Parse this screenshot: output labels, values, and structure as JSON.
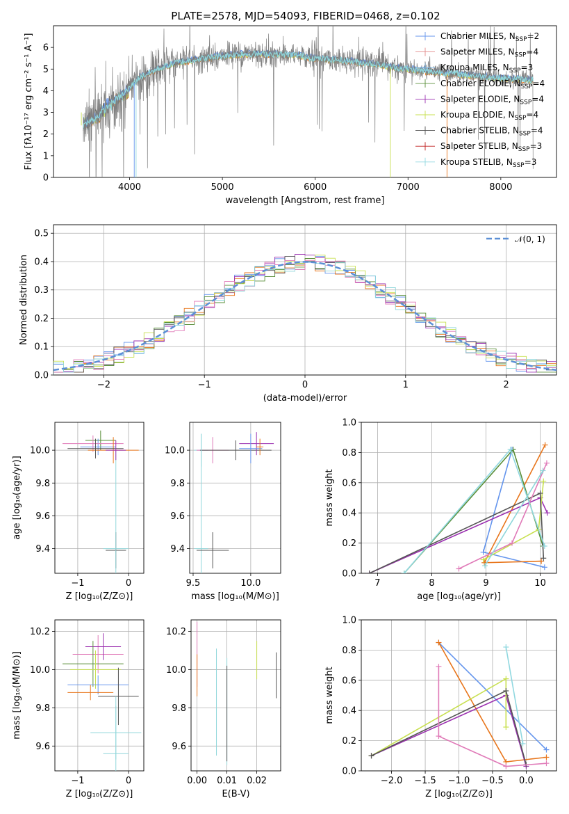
{
  "title": "PLATE=2578, MJD=54093, FIBERID=0468, z=0.102",
  "colors": {
    "grid": "#b0b0b0",
    "data": "#808080",
    "models": [
      "#6495ED",
      "#E38A8A",
      "#78B7E8",
      "#5A8F3A",
      "#9B30B0",
      "#C8E050",
      "#555555",
      "#C02020",
      "#90D8E0"
    ],
    "chi": [
      "#6495ED",
      "#E8761C",
      "#5A8F3A",
      "#9B30B0",
      "#C8E050",
      "#555555",
      "#E07AB8",
      "#8FD6DA"
    ],
    "normal": "#5B8FD6"
  },
  "chart_data": [
    {
      "id": "spectrum",
      "type": "line",
      "xlabel": "wavelength [Angstrom, rest frame]",
      "ylabel": "Flux [fλ10⁻¹⁷ erg cm⁻² s⁻¹ A⁻¹]",
      "xlim": [
        3180,
        8600
      ],
      "ylim": [
        0,
        7
      ],
      "xticks": [
        4000,
        5000,
        6000,
        7000,
        8000
      ],
      "yticks": [
        0,
        1,
        2,
        3,
        4,
        5,
        6
      ],
      "continuum": {
        "x": [
          3500,
          3650,
          3800,
          3950,
          4100,
          4300,
          4500,
          4800,
          5000,
          5200,
          5500,
          5800,
          6000,
          6300,
          6600,
          6900,
          7200,
          7500,
          7800,
          8100,
          8350
        ],
        "y": [
          2.4,
          2.8,
          3.4,
          3.9,
          4.6,
          5.0,
          5.3,
          5.5,
          5.6,
          5.7,
          5.7,
          5.65,
          5.5,
          5.4,
          5.25,
          5.05,
          4.9,
          4.8,
          4.65,
          4.55,
          4.5
        ]
      },
      "legend": [
        {
          "label": "Chabrier MILES, N",
          "sub": "SSP",
          "tail": "=2"
        },
        {
          "label": "Salpeter MILES, N",
          "sub": "SSP",
          "tail": "=4"
        },
        {
          "label": "Kroupa MILES, N",
          "sub": "SSP",
          "tail": "=3"
        },
        {
          "label": "Chabrier ELODIE, N",
          "sub": "SSP",
          "tail": "=4"
        },
        {
          "label": "Salpeter ELODIE, N",
          "sub": "SSP",
          "tail": "=4"
        },
        {
          "label": "Kroupa ELODIE, N",
          "sub": "SSP",
          "tail": "=4"
        },
        {
          "label": "Chabrier STELIB, N",
          "sub": "SSP",
          "tail": "=4"
        },
        {
          "label": "Salpeter STELIB, N",
          "sub": "SSP",
          "tail": "=3"
        },
        {
          "label": "Kroupa STELIB, N",
          "sub": "SSP",
          "tail": "=3"
        }
      ]
    },
    {
      "id": "residuals",
      "type": "histogram",
      "xlabel": "(data-model)/error",
      "ylabel": "Normed distribution",
      "xlim": [
        -2.5,
        2.5
      ],
      "ylim": [
        0,
        0.53
      ],
      "xticks": [
        -2,
        -1,
        0,
        1,
        2
      ],
      "yticks": [
        0.0,
        0.1,
        0.2,
        0.3,
        0.4,
        0.5
      ],
      "legend": "𝒩(0, 1)",
      "bin_width": 0.1,
      "curve": "normal(0,1)"
    },
    {
      "id": "age_vs_Z",
      "type": "errorbar",
      "xlabel": "Z [log₁₀(Z/Z⊙)]",
      "ylabel": "age  [log₁₀(age/yr)]",
      "xlim": [
        -1.45,
        0.3
      ],
      "ylim": [
        9.25,
        10.17
      ],
      "xticks": [
        -1,
        0
      ],
      "yticks": [
        9.4,
        9.6,
        9.8,
        10.0
      ],
      "points": [
        {
          "x": -0.55,
          "y": 10.06,
          "x_err": 0.3,
          "y_err": 0.06,
          "c": 2
        },
        {
          "x": -0.6,
          "y": 10.02,
          "x_err": 0.35,
          "y_err": 0.05,
          "c": 0
        },
        {
          "x": -0.7,
          "y": 10.04,
          "x_err": 0.6,
          "y_err": 0.05,
          "c": 6
        },
        {
          "x": -0.3,
          "y": 10.0,
          "x_err": 0.5,
          "y_err": 0.08,
          "c": 1
        },
        {
          "x": -0.65,
          "y": 10.01,
          "x_err": 0.55,
          "y_err": 0.06,
          "c": 5
        },
        {
          "x": -0.25,
          "y": 9.39,
          "x_err": 0.2,
          "y_err": 0.11,
          "c": 5
        },
        {
          "x": -0.25,
          "y": 9.4,
          "x_err": 0.25,
          "y_err": 0.6,
          "c": 7
        },
        {
          "x": -0.25,
          "y": 10.0,
          "x_err": 0.2,
          "y_err": 0.06,
          "c": 3
        }
      ]
    },
    {
      "id": "age_vs_mass",
      "type": "errorbar",
      "xlabel": "mass [log₁₀(M/M⊙)]",
      "ylabel": "",
      "xlim": [
        9.47,
        10.26
      ],
      "ylim": [
        9.25,
        10.17
      ],
      "xticks": [
        9.5,
        10.0
      ],
      "yticks": [
        9.4,
        9.6,
        9.8,
        10.0
      ],
      "points": [
        {
          "x": 9.57,
          "y": 10.0,
          "x_err": 0.06,
          "y_err": 0.1,
          "c": 7
        },
        {
          "x": 9.67,
          "y": 10.0,
          "x_err": 0.14,
          "y_err": 0.08,
          "c": 6
        },
        {
          "x": 9.87,
          "y": 10.0,
          "x_err": 0.31,
          "y_err": 0.06,
          "c": 5
        },
        {
          "x": 10.05,
          "y": 10.04,
          "x_err": 0.15,
          "y_err": 0.07,
          "c": 3
        },
        {
          "x": 10.0,
          "y": 10.01,
          "x_err": 0.1,
          "y_err": 0.09,
          "c": 0
        },
        {
          "x": 9.57,
          "y": 9.4,
          "x_err": 0.06,
          "y_err": 0.7,
          "c": 7
        },
        {
          "x": 9.67,
          "y": 9.39,
          "x_err": 0.14,
          "y_err": 0.11,
          "c": 5
        },
        {
          "x": 10.08,
          "y": 10.02,
          "x_err": 0.03,
          "y_err": 0.05,
          "c": 1
        }
      ]
    },
    {
      "id": "mw_vs_age",
      "type": "line",
      "xlabel": "age  [log₁₀(age/yr)]",
      "ylabel": "mass weight",
      "xlim": [
        6.7,
        10.3
      ],
      "ylim": [
        0,
        1.0
      ],
      "xticks": [
        7,
        8,
        9,
        10
      ],
      "yticks": [
        0.0,
        0.2,
        0.4,
        0.6,
        0.8,
        1.0
      ],
      "series": [
        {
          "c": 0,
          "x": [
            9.48,
            8.95,
            10.08
          ],
          "y": [
            0.82,
            0.14,
            0.04
          ]
        },
        {
          "c": 1,
          "x": [
            10.09,
            8.97,
            10.02
          ],
          "y": [
            0.85,
            0.07,
            0.08
          ]
        },
        {
          "c": 2,
          "x": [
            7.49,
            9.5,
            10.05
          ],
          "y": [
            0.0,
            0.82,
            0.18
          ]
        },
        {
          "c": 3,
          "x": [
            6.85,
            10.0,
            10.13
          ],
          "y": [
            0.0,
            0.5,
            0.4
          ]
        },
        {
          "c": 4,
          "x": [
            8.95,
            9.97,
            10.06
          ],
          "y": [
            0.09,
            0.29,
            0.61
          ]
        },
        {
          "c": 5,
          "x": [
            6.85,
            10.0,
            10.06
          ],
          "y": [
            0.0,
            0.53,
            0.1
          ]
        },
        {
          "c": 6,
          "x": [
            8.5,
            9.48,
            10.12
          ],
          "y": [
            0.03,
            0.2,
            0.73
          ]
        },
        {
          "c": 7,
          "x": [
            8.98,
            10.05
          ],
          "y": [
            0.05,
            0.68
          ]
        },
        {
          "c": 8,
          "x": [
            7.49,
            9.45,
            10.08
          ],
          "y": [
            0.0,
            0.82,
            0.18
          ]
        }
      ]
    },
    {
      "id": "mass_vs_Z",
      "type": "errorbar",
      "xlabel": "Z [log₁₀(Z/Z⊙)]",
      "ylabel": "mass [log₁₀(M/M⊙)]",
      "xlim": [
        -1.45,
        0.3
      ],
      "ylim": [
        9.47,
        10.26
      ],
      "xticks": [
        -1,
        0
      ],
      "yticks": [
        9.6,
        9.8,
        10.0,
        10.2
      ],
      "points": [
        {
          "x": -0.85,
          "y": 10.24,
          "x_err": 0.0,
          "y_err": 0.0,
          "c": 6
        },
        {
          "x": -0.6,
          "y": 10.08,
          "x_err": 0.5,
          "y_err": 0.1,
          "c": 6
        },
        {
          "x": -0.5,
          "y": 10.12,
          "x_err": 0.35,
          "y_err": 0.07,
          "c": 3
        },
        {
          "x": -0.7,
          "y": 10.03,
          "x_err": 0.6,
          "y_err": 0.12,
          "c": 2
        },
        {
          "x": -0.65,
          "y": 10.0,
          "x_err": 0.5,
          "y_err": 0.1,
          "c": 4
        },
        {
          "x": -0.6,
          "y": 9.92,
          "x_err": 0.6,
          "y_err": 0.05,
          "c": 0
        },
        {
          "x": -0.75,
          "y": 9.88,
          "x_err": 0.45,
          "y_err": 0.04,
          "c": 1
        },
        {
          "x": -0.2,
          "y": 9.86,
          "x_err": 0.4,
          "y_err": 0.15,
          "c": 5
        },
        {
          "x": -0.25,
          "y": 9.67,
          "x_err": 0.5,
          "y_err": 0.14,
          "c": 7
        },
        {
          "x": -0.25,
          "y": 9.56,
          "x_err": 0.25,
          "y_err": 0.3,
          "c": 7
        }
      ]
    },
    {
      "id": "mass_vs_ebv",
      "type": "errorbar",
      "xlabel": "E(B-V)",
      "ylabel": "",
      "xlim": [
        -0.002,
        0.028
      ],
      "ylim": [
        9.47,
        10.26
      ],
      "xticks": [
        0.0,
        0.01,
        0.02
      ],
      "yticks": [
        9.6,
        9.8,
        10.0,
        10.2
      ],
      "points": [
        {
          "x": 0.0,
          "y": 10.08,
          "y_err": 0.17,
          "c": 6
        },
        {
          "x": 0.0,
          "y": 9.97,
          "y_err": 0.11,
          "c": 1
        },
        {
          "x": 0.0065,
          "y": 9.83,
          "y_err": 0.28,
          "c": 7
        },
        {
          "x": 0.01,
          "y": 9.78,
          "y_err": 0.28,
          "c": 7
        },
        {
          "x": 0.01,
          "y": 9.77,
          "y_err": 0.25,
          "c": 5
        },
        {
          "x": 0.02,
          "y": 10.05,
          "y_err": 0.1,
          "c": 4
        },
        {
          "x": 0.0265,
          "y": 9.97,
          "y_err": 0.12,
          "c": 5
        }
      ]
    },
    {
      "id": "mw_vs_Z",
      "type": "line",
      "xlabel": "Z [log₁₀(Z/Z⊙)]",
      "ylabel": "mass weight",
      "xlim": [
        -2.45,
        0.45
      ],
      "ylim": [
        0,
        1.0
      ],
      "xticks": [
        -2.0,
        -1.5,
        -1.0,
        -0.5,
        0.0
      ],
      "yticks": [
        0.0,
        0.2,
        0.4,
        0.6,
        0.8,
        1.0
      ],
      "series": [
        {
          "c": 0,
          "x": [
            -1.3,
            0.3
          ],
          "y": [
            0.85,
            0.14
          ]
        },
        {
          "c": 1,
          "x": [
            -1.3,
            -0.3,
            0.3
          ],
          "y": [
            0.85,
            0.06,
            0.09
          ]
        },
        {
          "c": 3,
          "x": [
            -2.3,
            -0.3,
            0.0
          ],
          "y": [
            0.1,
            0.5,
            0.03
          ]
        },
        {
          "c": 4,
          "x": [
            -2.3,
            -0.3,
            -0.3
          ],
          "y": [
            0.1,
            0.61,
            0.29
          ]
        },
        {
          "c": 5,
          "x": [
            -2.3,
            -0.3,
            0.0
          ],
          "y": [
            0.1,
            0.53,
            0.04
          ]
        },
        {
          "c": 6,
          "x": [
            -1.3,
            -1.3,
            -0.3,
            0.3
          ],
          "y": [
            0.69,
            0.23,
            0.03,
            0.05
          ]
        },
        {
          "c": 8,
          "x": [
            -0.3,
            -0.05
          ],
          "y": [
            0.82,
            0.18
          ]
        }
      ]
    }
  ]
}
